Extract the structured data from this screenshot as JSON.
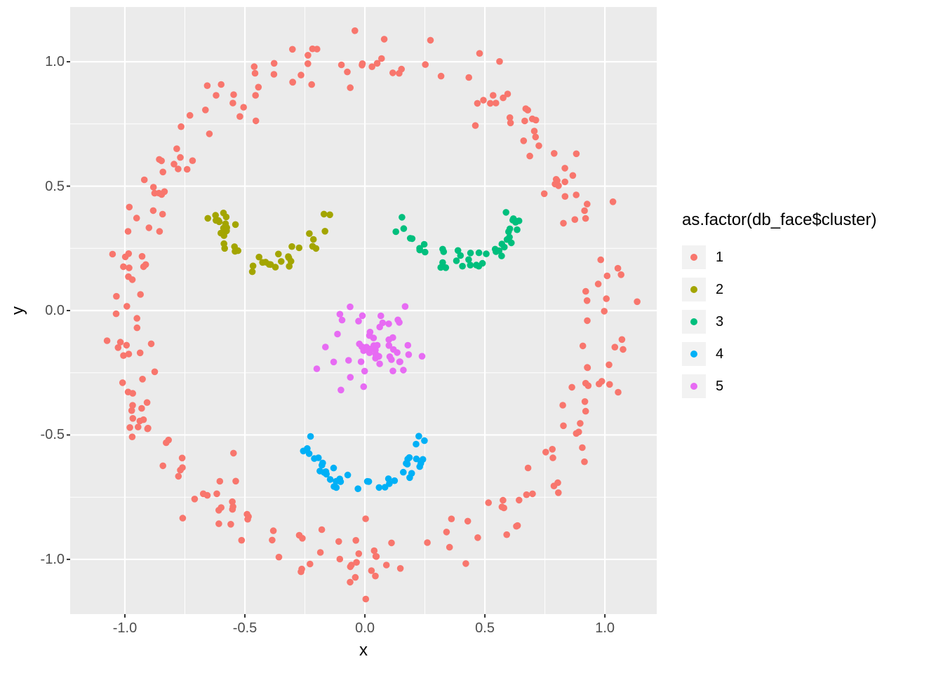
{
  "figure": {
    "background": "#FFFFFF",
    "panel_background": "#EBEBEB",
    "grid_color": "#FFFFFF",
    "tick_mark_color": "#333333",
    "tick_label_color": "#4D4D4D",
    "axis_title_color": "#000000",
    "legend_key_background": "#F2F2F2"
  },
  "chart_data": {
    "type": "scatter",
    "title": "",
    "xlabel": "x",
    "ylabel": "y",
    "xlim": [
      -1.228,
      1.216
    ],
    "ylim": [
      -1.22,
      1.22
    ],
    "x_ticks": [
      -1.0,
      -0.5,
      0.0,
      0.5,
      1.0
    ],
    "y_ticks": [
      -1.0,
      -0.5,
      0.0,
      0.5,
      1.0
    ],
    "x_tick_labels": [
      "-1.0",
      "-0.5",
      "0.0",
      "0.5",
      "1.0"
    ],
    "y_tick_labels": [
      "-1.0",
      "-0.5",
      "0.0",
      "0.5",
      "1.0"
    ],
    "x_minor_ticks": [
      -0.75,
      -0.25,
      0.25,
      0.75
    ],
    "y_minor_ticks": [
      -0.75,
      -0.25,
      0.25,
      0.75
    ],
    "grid": true,
    "legend_position": "right",
    "legend_title": "as.factor(db_face$cluster)",
    "point_radius_px": 4.8,
    "series": [
      {
        "name": "1",
        "color": "#F8766D",
        "description": "face outline ring, radius ~1.0 around origin",
        "shape": {
          "kind": "ring",
          "center": [
            0.0,
            0.0
          ],
          "radius": 1.0,
          "noise_sd": 0.055,
          "count": 260,
          "seed": 11
        }
      },
      {
        "name": "2",
        "color": "#A3A500",
        "description": "left eye arc, u-shape spanning x -0.63..-0.16, y 0.16..0.42",
        "shape": {
          "kind": "arc",
          "center": [
            -0.39,
            0.43
          ],
          "radius": 0.24,
          "angle_start_deg": 190,
          "angle_end_deg": 350,
          "noise_sd": 0.022,
          "count": 42,
          "seed": 22
        }
      },
      {
        "name": "3",
        "color": "#00BF7D",
        "description": "right eye arc, u-shape spanning x 0.15..0.64, y 0.16..0.42",
        "shape": {
          "kind": "arc",
          "center": [
            0.4,
            0.43
          ],
          "radius": 0.24,
          "angle_start_deg": 190,
          "angle_end_deg": 350,
          "noise_sd": 0.022,
          "count": 45,
          "seed": 33
        }
      },
      {
        "name": "4",
        "color": "#00B0F6",
        "description": "mouth arc, u-shape spanning x -0.25..0.24, y -0.72..-0.48",
        "shape": {
          "kind": "arc",
          "center": [
            0.0,
            -0.46
          ],
          "radius": 0.25,
          "angle_start_deg": 190,
          "angle_end_deg": 350,
          "noise_sd": 0.02,
          "count": 42,
          "seed": 44
        }
      },
      {
        "name": "5",
        "color": "#E76BF3",
        "description": "nose blob centered near (0.02, -0.14), x -0.19..0.22, y -0.30..0.0",
        "shape": {
          "kind": "blob",
          "center": [
            0.02,
            -0.14
          ],
          "sd": [
            0.09,
            0.075
          ],
          "count": 52,
          "seed": 55
        }
      }
    ]
  }
}
